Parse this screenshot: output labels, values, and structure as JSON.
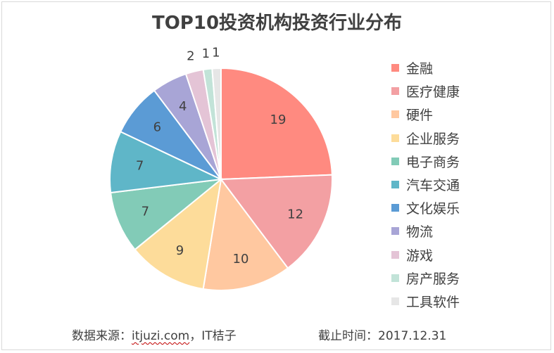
{
  "chart_data": {
    "type": "pie",
    "title": "TOP10投资机构投资行业分布",
    "legend_position": "right",
    "categories": [
      "金融",
      "医疗健康",
      "硬件",
      "企业服务",
      "电子商务",
      "汽车交通",
      "文化娱乐",
      "物流",
      "游戏",
      "房产服务",
      "工具软件"
    ],
    "values": [
      19,
      12,
      10,
      9,
      7,
      7,
      6,
      4,
      2,
      1,
      1
    ],
    "colors": [
      "#ff8a80",
      "#f3a0a3",
      "#ffc8a0",
      "#fddc9a",
      "#82cbb7",
      "#5fb6c8",
      "#5b9bd5",
      "#a8a5d6",
      "#e4c4d6",
      "#c2e3d8",
      "#e6e6e6"
    ]
  },
  "footer": {
    "source_label": "数据来源：",
    "source_link": "itjuzi.com",
    "source_rest": "，IT桔子",
    "date": "截止时间：2017.12.31"
  }
}
